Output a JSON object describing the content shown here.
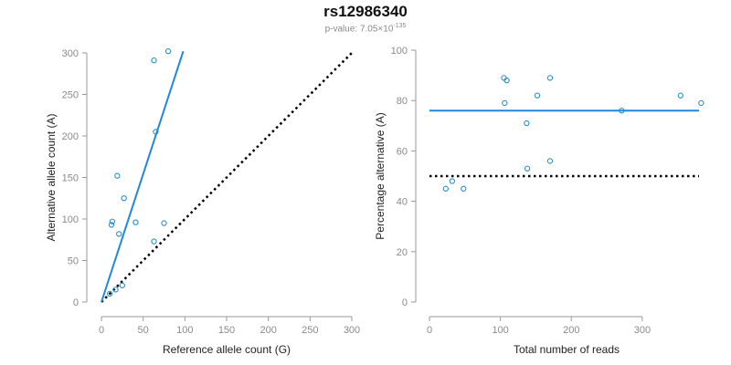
{
  "title": "rs12986340",
  "subtitle": {
    "prefix": "p-value: 7.05",
    "times": "×",
    "base": "10",
    "exponent": "-135"
  },
  "colors": {
    "points": "#2a8dc4",
    "fit_line": "#1f88dc",
    "reference_line": "#000000",
    "axis": "#9a9a9a"
  },
  "chart_data": [
    {
      "type": "scatter",
      "name": "allele-counts",
      "xlabel": "Reference allele count (G)",
      "ylabel": "Alternative allele count (A)",
      "xlim": [
        0,
        300
      ],
      "ylim": [
        0,
        300
      ],
      "xticks": [
        0,
        50,
        100,
        150,
        200,
        250,
        300
      ],
      "yticks": [
        0,
        50,
        100,
        150,
        200,
        250,
        300
      ],
      "points": [
        {
          "x": 10,
          "y": 10
        },
        {
          "x": 17,
          "y": 15
        },
        {
          "x": 25,
          "y": 20
        },
        {
          "x": 12,
          "y": 93
        },
        {
          "x": 13,
          "y": 97
        },
        {
          "x": 21,
          "y": 82
        },
        {
          "x": 19,
          "y": 152
        },
        {
          "x": 27,
          "y": 125
        },
        {
          "x": 41,
          "y": 96
        },
        {
          "x": 63,
          "y": 73
        },
        {
          "x": 75,
          "y": 95
        },
        {
          "x": 65,
          "y": 205
        },
        {
          "x": 63,
          "y": 291
        },
        {
          "x": 80,
          "y": 302
        }
      ],
      "fit_line": {
        "x1": 0,
        "y1": 0,
        "x2": 98,
        "y2": 302
      },
      "reference_line": {
        "x1": 0,
        "y1": 0,
        "x2": 300,
        "y2": 300
      },
      "grid": false
    },
    {
      "type": "scatter",
      "name": "percentage-alternative",
      "xlabel": "Total number of reads",
      "ylabel": "Percentage alternative (A)",
      "xlim": [
        0,
        380
      ],
      "ylim": [
        0,
        100
      ],
      "xticks": [
        0,
        100,
        200,
        300
      ],
      "yticks": [
        0,
        20,
        40,
        60,
        80,
        100
      ],
      "points": [
        {
          "x": 23,
          "y": 45
        },
        {
          "x": 32,
          "y": 48
        },
        {
          "x": 48,
          "y": 45
        },
        {
          "x": 105,
          "y": 89
        },
        {
          "x": 109,
          "y": 88
        },
        {
          "x": 106,
          "y": 79
        },
        {
          "x": 152,
          "y": 82
        },
        {
          "x": 170,
          "y": 89
        },
        {
          "x": 137,
          "y": 71
        },
        {
          "x": 138,
          "y": 53
        },
        {
          "x": 170,
          "y": 56
        },
        {
          "x": 271,
          "y": 76
        },
        {
          "x": 354,
          "y": 82
        },
        {
          "x": 383,
          "y": 79
        }
      ],
      "fit_line": {
        "x1": 0,
        "y1": 76,
        "x2": 380,
        "y2": 76
      },
      "reference_line": {
        "x1": 0,
        "y1": 50,
        "x2": 380,
        "y2": 50
      },
      "grid": false
    }
  ]
}
